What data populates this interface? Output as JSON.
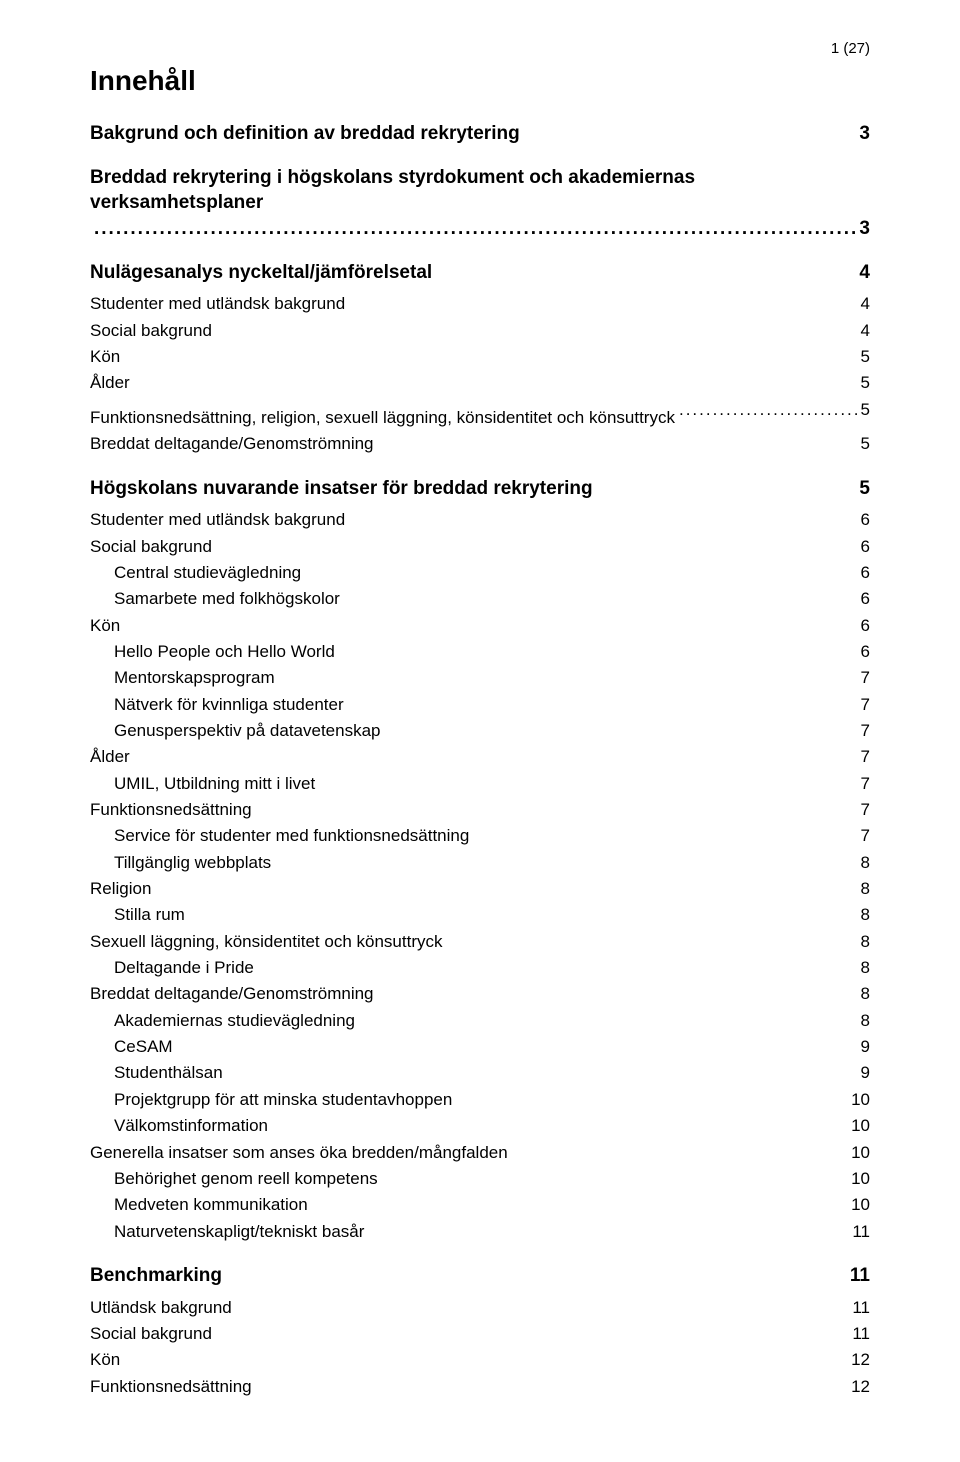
{
  "page_indicator": "1 (27)",
  "title": "Innehåll",
  "entries": [
    {
      "level": 1,
      "label": "Bakgrund och definition av breddad rekrytering",
      "page": "3"
    },
    {
      "level": 1,
      "label": "Breddad rekrytering i högskolans styrdokument och akademiernas verksamhetsplaner",
      "page": "3",
      "wrap": true
    },
    {
      "level": 1,
      "label": "Nulägesanalys nyckeltal/jämförelsetal",
      "page": "4"
    },
    {
      "level": 2,
      "label": "Studenter med utländsk bakgrund",
      "page": "4"
    },
    {
      "level": 2,
      "label": "Social bakgrund",
      "page": "4"
    },
    {
      "level": 2,
      "label": "Kön",
      "page": "5"
    },
    {
      "level": 2,
      "label": "Ålder",
      "page": "5"
    },
    {
      "level": 2,
      "label": "Funktionsnedsättning, religion, sexuell läggning, könsidentitet och könsuttryck",
      "page": "5",
      "wrap": true
    },
    {
      "level": 2,
      "label": "Breddat deltagande/Genomströmning",
      "page": "5"
    },
    {
      "level": 1,
      "label": "Högskolans nuvarande insatser för breddad rekrytering",
      "page": "5"
    },
    {
      "level": 2,
      "label": "Studenter med utländsk bakgrund",
      "page": "6"
    },
    {
      "level": 2,
      "label": "Social bakgrund",
      "page": "6"
    },
    {
      "level": 3,
      "label": "Central studievägledning",
      "page": "6"
    },
    {
      "level": 3,
      "label": "Samarbete med folkhögskolor",
      "page": "6"
    },
    {
      "level": 2,
      "label": "Kön",
      "page": "6"
    },
    {
      "level": 3,
      "label": "Hello People och Hello World",
      "page": "6"
    },
    {
      "level": 3,
      "label": "Mentorskapsprogram",
      "page": "7"
    },
    {
      "level": 3,
      "label": "Nätverk för kvinnliga studenter",
      "page": "7"
    },
    {
      "level": 3,
      "label": "Genusperspektiv på datavetenskap",
      "page": "7"
    },
    {
      "level": 2,
      "label": "Ålder",
      "page": "7"
    },
    {
      "level": 3,
      "label": "UMIL, Utbildning mitt i livet",
      "page": "7"
    },
    {
      "level": 2,
      "label": "Funktionsnedsättning",
      "page": "7"
    },
    {
      "level": 3,
      "label": "Service för studenter med funktionsnedsättning",
      "page": "7"
    },
    {
      "level": 3,
      "label": "Tillgänglig webbplats",
      "page": "8"
    },
    {
      "level": 2,
      "label": "Religion",
      "page": "8"
    },
    {
      "level": 3,
      "label": "Stilla rum",
      "page": "8"
    },
    {
      "level": 2,
      "label": "Sexuell läggning, könsidentitet och könsuttryck",
      "page": "8"
    },
    {
      "level": 3,
      "label": "Deltagande i Pride",
      "page": "8"
    },
    {
      "level": 2,
      "label": "Breddat deltagande/Genomströmning",
      "page": "8"
    },
    {
      "level": 3,
      "label": "Akademiernas studievägledning",
      "page": "8"
    },
    {
      "level": 3,
      "label": "CeSAM",
      "page": "9"
    },
    {
      "level": 3,
      "label": "Studenthälsan",
      "page": "9"
    },
    {
      "level": 3,
      "label": "Projektgrupp för att minska studentavhoppen",
      "page": "10"
    },
    {
      "level": 3,
      "label": "Välkomstinformation",
      "page": "10"
    },
    {
      "level": 2,
      "label": "Generella insatser som anses öka bredden/mångfalden",
      "page": "10"
    },
    {
      "level": 3,
      "label": "Behörighet genom reell kompetens",
      "page": "10"
    },
    {
      "level": 3,
      "label": "Medveten kommunikation",
      "page": "10"
    },
    {
      "level": 3,
      "label": "Naturvetenskapligt/tekniskt basår",
      "page": "11"
    },
    {
      "level": 1,
      "label": "Benchmarking",
      "page": "11"
    },
    {
      "level": 2,
      "label": "Utländsk bakgrund",
      "page": "11"
    },
    {
      "level": 2,
      "label": "Social bakgrund",
      "page": "11"
    },
    {
      "level": 2,
      "label": "Kön",
      "page": "12"
    },
    {
      "level": 2,
      "label": "Funktionsnedsättning",
      "page": "12"
    }
  ]
}
